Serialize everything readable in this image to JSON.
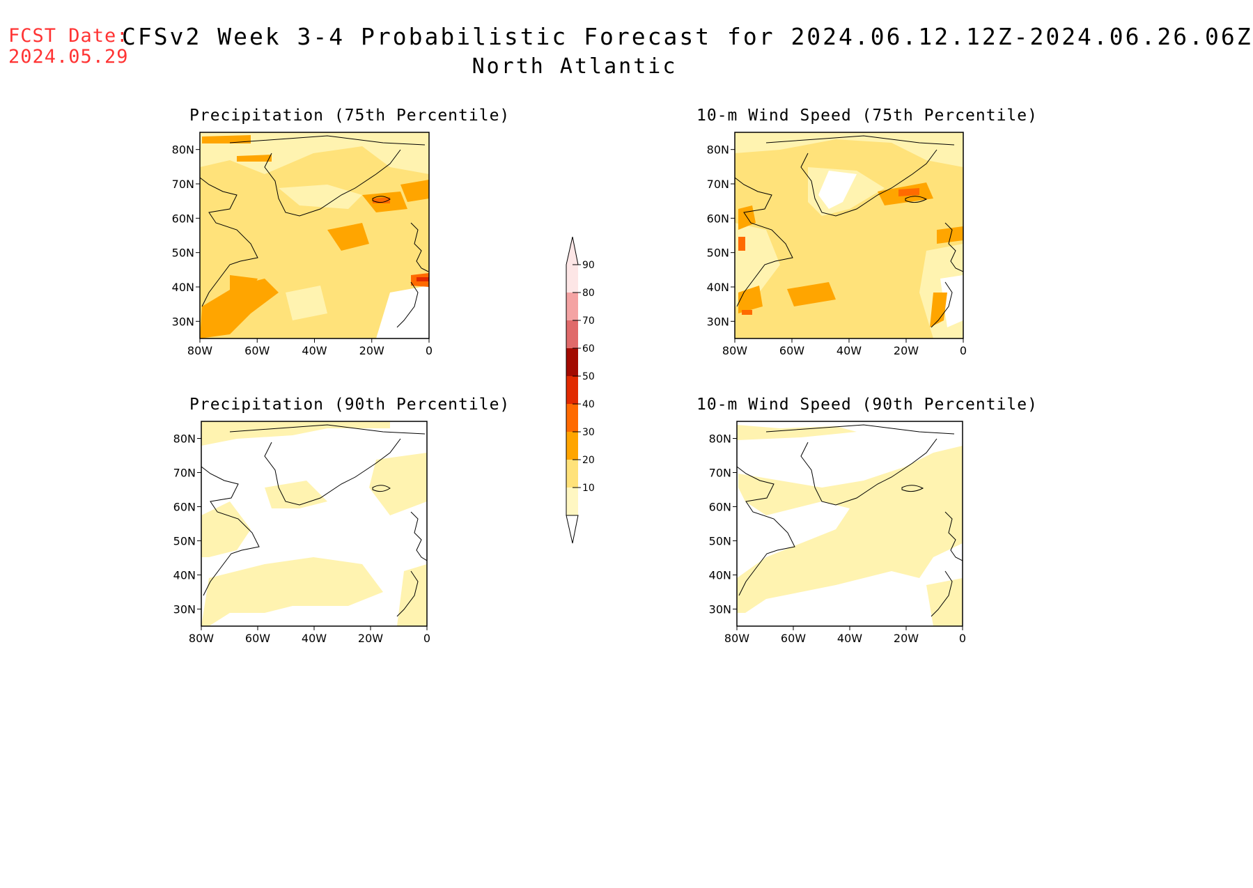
{
  "header": {
    "fcst_label": "FCST Date:",
    "fcst_date": "2024.05.29",
    "title": "CFSv2 Week 3-4 Probabilistic Forecast for 2024.06.12.12Z-2024.06.26.06Z",
    "subtitle": "North Atlantic"
  },
  "panels": [
    {
      "title": "Precipitation (75th Percentile)"
    },
    {
      "title": "10-m Wind Speed (75th Percentile)"
    },
    {
      "title": "Precipitation (90th Percentile)"
    },
    {
      "title": "10-m Wind Speed (90th Percentile)"
    }
  ],
  "axes": {
    "lat_ticks": [
      "80N",
      "70N",
      "60N",
      "50N",
      "40N",
      "30N"
    ],
    "lon_ticks": [
      "80W",
      "60W",
      "40W",
      "20W",
      "0"
    ]
  },
  "colorbar": {
    "labels": [
      "90",
      "80",
      "70",
      "60",
      "50",
      "40",
      "30",
      "20",
      "10"
    ],
    "colors": [
      "#fff7c2",
      "#ffe27a",
      "#ffa500",
      "#ff6a00",
      "#e12a00",
      "#a30a00",
      "#e06a6a",
      "#f4a3a3",
      "#fde6e6"
    ]
  }
}
